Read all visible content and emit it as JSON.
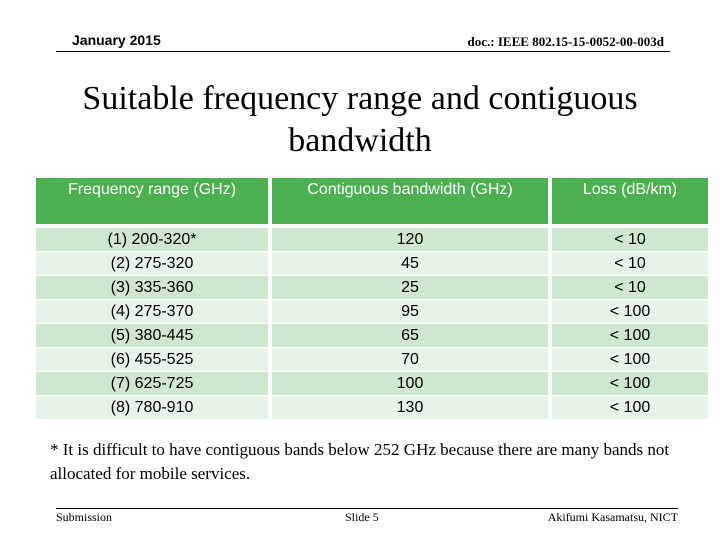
{
  "header": {
    "date": "January 2015",
    "doc_id": "doc.: IEEE 802.15-15-0052-00-003d"
  },
  "title": "Suitable frequency range and contiguous bandwidth",
  "table": {
    "headers": [
      "Frequency range (GHz)",
      "Contiguous bandwidth (GHz)",
      "Loss (dB/km)"
    ],
    "rows": [
      [
        "(1) 200-320*",
        "120",
        "< 10"
      ],
      [
        "(2) 275-320",
        "45",
        "< 10"
      ],
      [
        "(3) 335-360",
        "25",
        "< 10"
      ],
      [
        "(4) 275-370",
        "95",
        "< 100"
      ],
      [
        "(5) 380-445",
        "65",
        "< 100"
      ],
      [
        "(6) 455-525",
        "70",
        "< 100"
      ],
      [
        "(7) 625-725",
        "100",
        "< 100"
      ],
      [
        "(8) 780-910",
        "130",
        "< 100"
      ]
    ]
  },
  "footnote": "* It is difficult to have contiguous bands below 252 GHz because there are many bands not allocated for mobile services.",
  "footer": {
    "left": "Submission",
    "center": "Slide 5",
    "right": "Akifumi Kasamatsu, NICT"
  },
  "colors": {
    "header_green": "#4caf50",
    "row_dark": "#cfe7cf",
    "row_light": "#e8f3e8"
  }
}
